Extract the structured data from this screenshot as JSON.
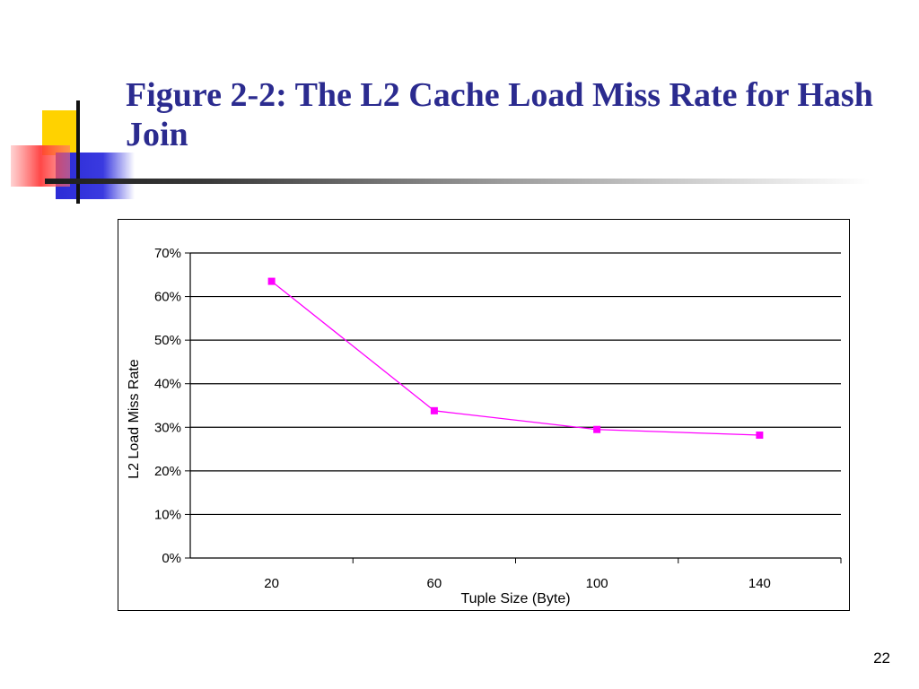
{
  "slide": {
    "title": "Figure 2-2: The L2 Cache Load Miss Rate for Hash Join",
    "title_color": "#2b2b8f",
    "page_number": "22"
  },
  "chart_data": {
    "type": "line",
    "title": "",
    "xlabel": "Tuple Size (Byte)",
    "ylabel": "L2 Load Miss Rate",
    "categories": [
      "20",
      "60",
      "100",
      "140"
    ],
    "series": [
      {
        "values": [
          0.635,
          0.338,
          0.295,
          0.282
        ],
        "color": "#ff00ff"
      }
    ],
    "ylim": [
      0,
      0.7
    ],
    "yticks": [
      "0%",
      "10%",
      "20%",
      "30%",
      "40%",
      "50%",
      "60%",
      "70%"
    ],
    "grid": true,
    "legend": "none"
  }
}
